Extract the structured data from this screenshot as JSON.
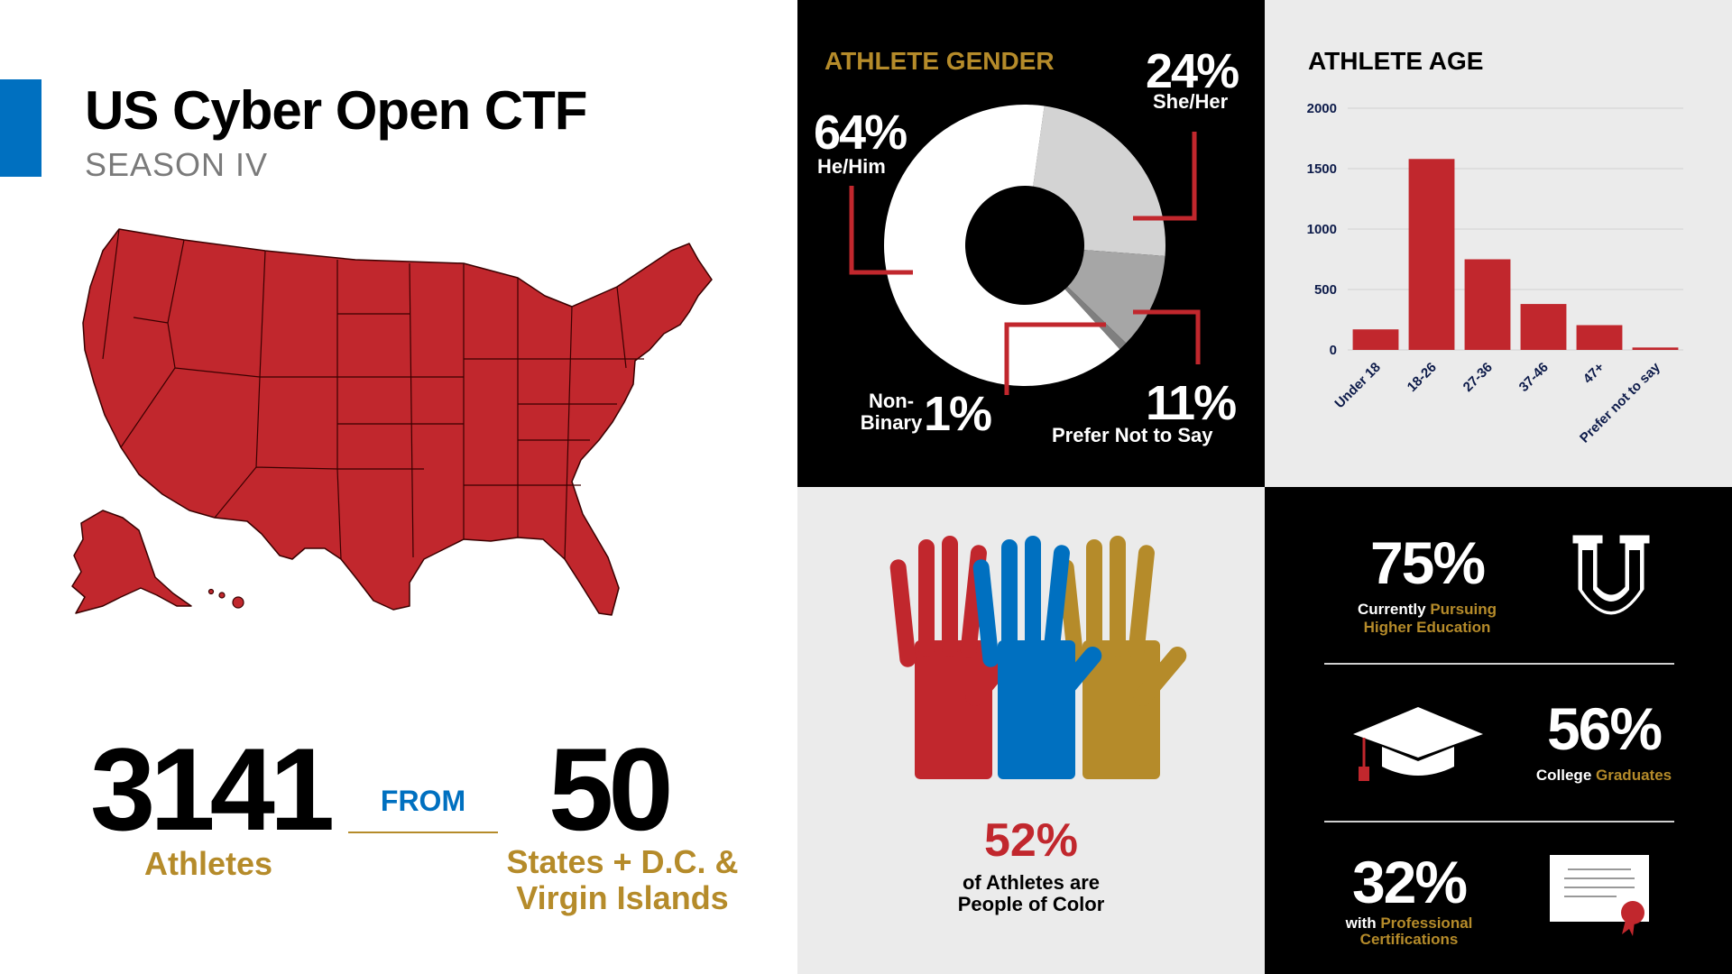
{
  "header": {
    "title": "US Cyber Open CTF",
    "subtitle": "SEASON IV"
  },
  "stats": {
    "athletes_value": "3141",
    "athletes_label": "Athletes",
    "from_label": "FROM",
    "states_value": "50",
    "states_label_line1": "States + D.C. &",
    "states_label_line2": "Virgin Islands"
  },
  "gender": {
    "title": "ATHLETE GENDER",
    "he_pct": "64%",
    "he_label": "He/Him",
    "she_pct": "24%",
    "she_label": "She/Her",
    "nb_pct": "1%",
    "nb_label_line1": "Non-",
    "nb_label_line2": "Binary",
    "pns_pct": "11%",
    "pns_label": "Prefer Not to Say"
  },
  "colors": {
    "red": "#c1272d",
    "blue": "#0070c0",
    "gold": "#b58b2a",
    "navy": "#0d1b4a",
    "light_gray": "#d3d3d3",
    "mid_gray": "#a6a6a6",
    "dark_gray": "#7f7f7f"
  },
  "age": {
    "title": "ATHLETE AGE"
  },
  "diversity": {
    "pct": "52%",
    "line1": "of Athletes are",
    "line2": "People of Color"
  },
  "education": {
    "pursuing_pct": "75%",
    "pursuing_w1": "Currently",
    "pursuing_g1": "Pursuing",
    "pursuing_g2": "Higher Education",
    "grads_pct": "56%",
    "grads_w": "College",
    "grads_g": "Graduates",
    "cert_pct": "32%",
    "cert_w": "with",
    "cert_g1": "Professional",
    "cert_g2": "Certifications"
  },
  "chart_data": [
    {
      "type": "pie",
      "title": "ATHLETE GENDER",
      "categories": [
        "He/Him",
        "She/Her",
        "Prefer Not to Say",
        "Non-Binary"
      ],
      "values": [
        64,
        24,
        11,
        1
      ],
      "colors": [
        "#ffffff",
        "#d3d3d3",
        "#a6a6a6",
        "#7f7f7f"
      ],
      "donut": true
    },
    {
      "type": "bar",
      "title": "ATHLETE AGE",
      "categories": [
        "Under 18",
        "18-26",
        "27-36",
        "37-46",
        "47+",
        "Prefer not to say"
      ],
      "values": [
        170,
        1580,
        750,
        380,
        205,
        20
      ],
      "ylim": [
        0,
        2000
      ],
      "yticks": [
        "0",
        "500",
        "1000",
        "1500",
        "2000"
      ],
      "grid": true,
      "color": "#c1272d"
    }
  ]
}
